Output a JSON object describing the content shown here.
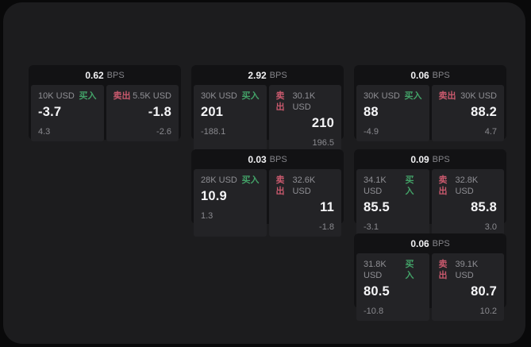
{
  "theme": {
    "outer_background": "#09090a",
    "panel_background": "#1c1c1e",
    "card_background": "#121214",
    "cell_background": "#232326",
    "text_primary": "#f5f5f7",
    "text_secondary": "#8f8f94",
    "buy_color": "#43a268",
    "sell_color": "#c9596d"
  },
  "labels": {
    "bps_suffix": "BPS",
    "buy": "买入",
    "sell": "卖出"
  },
  "cards": [
    {
      "row": 1,
      "col": 1,
      "bps": "0.62",
      "buy": {
        "amount": "10K USD",
        "price": "-3.7",
        "delta": "4.3"
      },
      "sell": {
        "amount": "5.5K USD",
        "price": "-1.8",
        "delta": "-2.6"
      }
    },
    {
      "row": 1,
      "col": 2,
      "bps": "2.92",
      "buy": {
        "amount": "30K USD",
        "price": "201",
        "delta": "-188.1"
      },
      "sell": {
        "amount": "30.1K USD",
        "price": "210",
        "delta": "196.5"
      }
    },
    {
      "row": 1,
      "col": 3,
      "bps": "0.06",
      "buy": {
        "amount": "30K USD",
        "price": "88",
        "delta": "-4.9"
      },
      "sell": {
        "amount": "30K USD",
        "price": "88.2",
        "delta": "4.7"
      }
    },
    {
      "row": 2,
      "col": 2,
      "bps": "0.03",
      "buy": {
        "amount": "28K USD",
        "price": "10.9",
        "delta": "1.3"
      },
      "sell": {
        "amount": "32.6K USD",
        "price": "11",
        "delta": "-1.8"
      }
    },
    {
      "row": 2,
      "col": 3,
      "bps": "0.09",
      "buy": {
        "amount": "34.1K USD",
        "price": "85.5",
        "delta": "-3.1"
      },
      "sell": {
        "amount": "32.8K USD",
        "price": "85.8",
        "delta": "3.0"
      }
    },
    {
      "row": 3,
      "col": 3,
      "bps": "0.06",
      "buy": {
        "amount": "31.8K USD",
        "price": "80.5",
        "delta": "-10.8"
      },
      "sell": {
        "amount": "39.1K USD",
        "price": "80.7",
        "delta": "10.2"
      }
    }
  ]
}
